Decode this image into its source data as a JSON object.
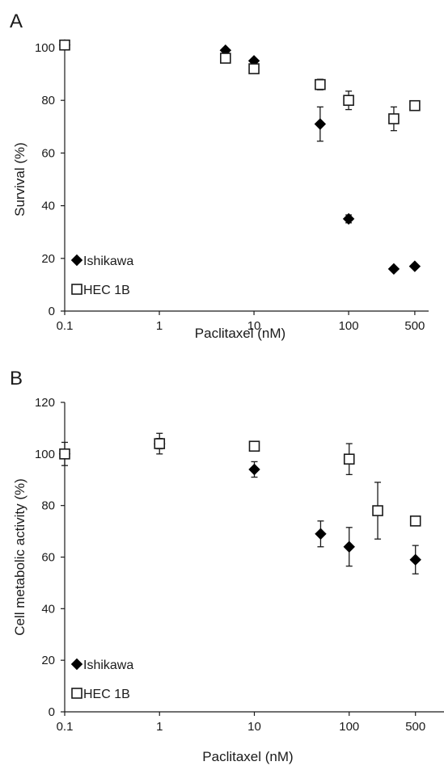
{
  "chart_data": [
    {
      "panel": "A",
      "type": "scatter",
      "xlabel": "Paclitaxel  (nM)",
      "ylabel": "Survival (%)",
      "xscale": "log",
      "xlim": [
        0.1,
        700
      ],
      "ylim": [
        0,
        100
      ],
      "xticks": [
        0.1,
        1,
        10,
        100,
        500
      ],
      "xtick_labels": [
        "0.1",
        "1",
        "10",
        "100",
        "500"
      ],
      "yticks": [
        0,
        20,
        40,
        60,
        80,
        100
      ],
      "ytick_labels": [
        "0",
        "20",
        "40",
        "60",
        "80",
        "100"
      ],
      "legend_position": "bottom-left",
      "series": [
        {
          "name": "Ishikawa",
          "marker": "filled-diamond",
          "color": "#000000",
          "points": [
            {
              "x": 0.1,
              "y": 101,
              "err": 0
            },
            {
              "x": 5,
              "y": 99,
              "err": 0
            },
            {
              "x": 10,
              "y": 95,
              "err": 0
            },
            {
              "x": 50,
              "y": 71,
              "err": 6.5
            },
            {
              "x": 100,
              "y": 35,
              "err": 1.5
            },
            {
              "x": 300,
              "y": 16,
              "err": 0.5
            },
            {
              "x": 500,
              "y": 17,
              "err": 0.5
            }
          ]
        },
        {
          "name": "HEC 1B",
          "marker": "open-square",
          "color": "#000000",
          "points": [
            {
              "x": 0.1,
              "y": 101,
              "err": 0
            },
            {
              "x": 5,
              "y": 96,
              "err": 0
            },
            {
              "x": 10,
              "y": 92,
              "err": 0
            },
            {
              "x": 50,
              "y": 86,
              "err": 2
            },
            {
              "x": 100,
              "y": 80,
              "err": 3.5
            },
            {
              "x": 300,
              "y": 73,
              "err": 4.5
            },
            {
              "x": 500,
              "y": 78,
              "err": 0
            }
          ]
        }
      ]
    },
    {
      "panel": "B",
      "type": "scatter",
      "xlabel": "Paclitaxel  (nM)",
      "ylabel": "Cell  metabolic activity (%)",
      "xscale": "log",
      "xlim": [
        0.1,
        1000
      ],
      "ylim": [
        0,
        120
      ],
      "xticks": [
        0.1,
        1,
        10,
        100,
        500
      ],
      "xtick_labels": [
        "0.1",
        "1",
        "10",
        "100",
        "500"
      ],
      "yticks": [
        0,
        20,
        40,
        60,
        80,
        100,
        120
      ],
      "ytick_labels": [
        "0",
        "20",
        "40",
        "60",
        "80",
        "100",
        "120"
      ],
      "legend_position": "bottom-left",
      "series": [
        {
          "name": "Ishikawa",
          "marker": "filled-diamond",
          "color": "#000000",
          "points": [
            {
              "x": 0.1,
              "y": 100,
              "err": 4.5
            },
            {
              "x": 1,
              "y": 104,
              "err": 4
            },
            {
              "x": 10,
              "y": 94,
              "err": 3
            },
            {
              "x": 50,
              "y": 69,
              "err": 5
            },
            {
              "x": 100,
              "y": 64,
              "err": 7.5
            },
            {
              "x": 500,
              "y": 59,
              "err": 5.5
            }
          ]
        },
        {
          "name": "HEC 1B",
          "marker": "open-square",
          "color": "#000000",
          "points": [
            {
              "x": 0.1,
              "y": 100,
              "err": 0
            },
            {
              "x": 1,
              "y": 104,
              "err": 2
            },
            {
              "x": 10,
              "y": 103,
              "err": 0
            },
            {
              "x": 100,
              "y": 98,
              "err": 6
            },
            {
              "x": 200,
              "y": 78,
              "err": 11
            },
            {
              "x": 500,
              "y": 74,
              "err": 0
            }
          ]
        }
      ]
    }
  ]
}
